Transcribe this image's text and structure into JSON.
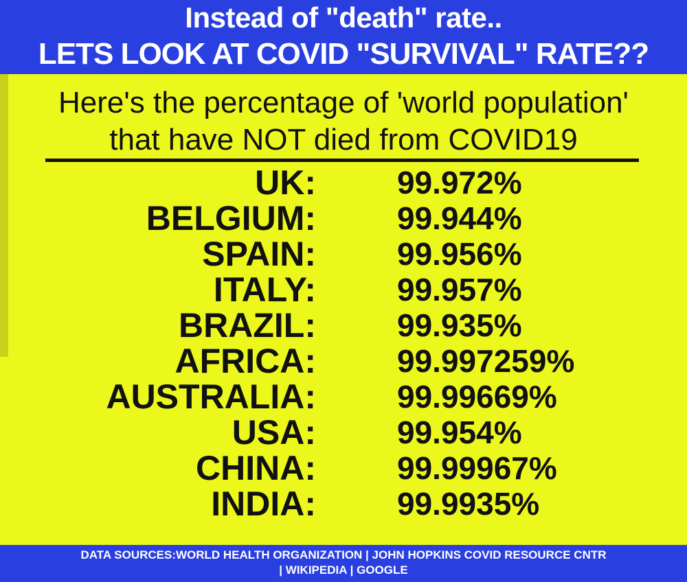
{
  "header": {
    "line1": "Instead of \"death\" rate..",
    "line2": "LETS LOOK AT COVID \"SURVIVAL\" RATE??"
  },
  "intro": {
    "line1": "Here's the percentage of 'world population'",
    "line2": "that have NOT died from COVID19"
  },
  "rates": [
    {
      "country": "UK:",
      "value": "99.972%"
    },
    {
      "country": "BELGIUM:",
      "value": "99.944%"
    },
    {
      "country": "SPAIN:",
      "value": "99.956%"
    },
    {
      "country": "ITALY:",
      "value": "99.957%"
    },
    {
      "country": "BRAZIL:",
      "value": "99.935%"
    },
    {
      "country": "AFRICA:",
      "value": "99.997259%"
    },
    {
      "country": "AUSTRALIA:",
      "value": "99.99669%"
    },
    {
      "country": "USA:",
      "value": "99.954%"
    },
    {
      "country": "CHINA:",
      "value": "99.99967%"
    },
    {
      "country": "INDIA:",
      "value": "99.9935%"
    }
  ],
  "footer": {
    "line1": "DATA SOURCES:WORLD HEALTH ORGANIZATION | JOHN HOPKINS COVID RESOURCE CNTR",
    "line2": "| WIKIPEDIA | GOOGLE"
  },
  "colors": {
    "banner_blue": "#2a3fe0",
    "panel_yellow": "#ecf71c",
    "text_dark": "#111111"
  }
}
